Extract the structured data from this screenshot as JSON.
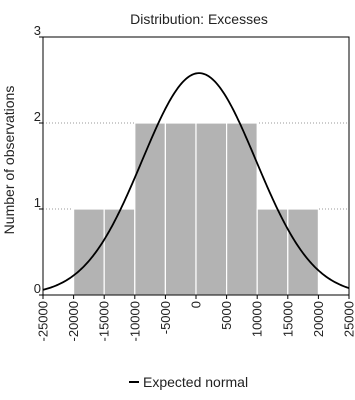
{
  "chart_data": {
    "type": "bar",
    "title": "Distribution: Excesses",
    "xlabel": "",
    "ylabel": "Number of observations",
    "xlim": [
      -25000,
      25000
    ],
    "ylim": [
      0,
      3
    ],
    "x_ticks": [
      -25000,
      -20000,
      -15000,
      -10000,
      -5000,
      0,
      5000,
      10000,
      15000,
      20000,
      25000
    ],
    "x_tick_labels": [
      "-25000",
      "-20000",
      "-15000",
      "-10000",
      "-5000",
      "0",
      "5000",
      "10000",
      "15000",
      "20000",
      "25000"
    ],
    "y_ticks": [
      0,
      1,
      2,
      3
    ],
    "y_tick_labels": [
      "0",
      "1",
      "2",
      "3"
    ],
    "grid": "horizontal-dotted",
    "bins": [
      {
        "start": -20000,
        "end": -15000,
        "count": 1
      },
      {
        "start": -15000,
        "end": -10000,
        "count": 1
      },
      {
        "start": -10000,
        "end": -5000,
        "count": 2
      },
      {
        "start": -5000,
        "end": 0,
        "count": 2
      },
      {
        "start": 0,
        "end": 5000,
        "count": 2
      },
      {
        "start": 5000,
        "end": 10000,
        "count": 2
      },
      {
        "start": 10000,
        "end": 15000,
        "count": 1
      },
      {
        "start": 15000,
        "end": 20000,
        "count": 1
      }
    ],
    "normal_curve": {
      "mean": 500,
      "sd": 9300,
      "peak": 2.58
    },
    "legend": {
      "position": "bottom",
      "entries": [
        "Expected normal"
      ]
    },
    "colors": {
      "bar": "#b3b3b3",
      "bar_stroke": "#ffffff",
      "curve": "#000000"
    }
  }
}
